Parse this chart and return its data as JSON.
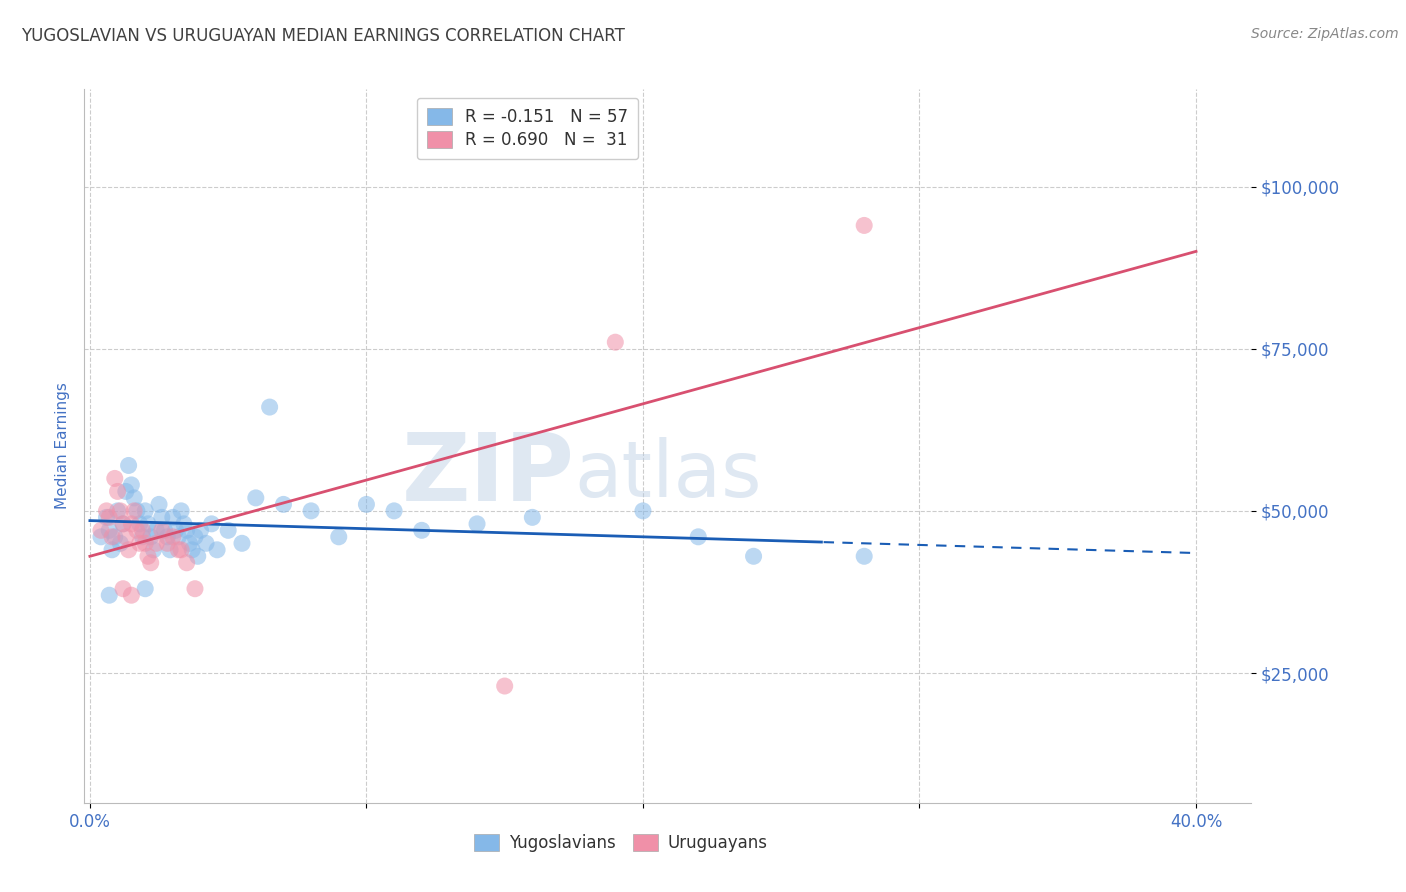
{
  "title": "YUGOSLAVIAN VS URUGUAYAN MEDIAN EARNINGS CORRELATION CHART",
  "source": "Source: ZipAtlas.com",
  "ylabel": "Median Earnings",
  "watermark_zip": "ZIP",
  "watermark_atlas": "atlas",
  "xlim": [
    -0.002,
    0.42
  ],
  "ylim": [
    5000,
    115000
  ],
  "y_ticks": [
    25000,
    50000,
    75000,
    100000
  ],
  "y_tick_labels": [
    "$25,000",
    "$50,000",
    "$75,000",
    "$100,000"
  ],
  "x_tick_positions": [
    0.0,
    0.1,
    0.2,
    0.3,
    0.4
  ],
  "x_tick_labels": [
    "0.0%",
    "",
    "",
    "",
    "40.0%"
  ],
  "blue_scatter": [
    [
      0.004,
      46000
    ],
    [
      0.006,
      49000
    ],
    [
      0.007,
      47000
    ],
    [
      0.008,
      44000
    ],
    [
      0.009,
      46000
    ],
    [
      0.01,
      50000
    ],
    [
      0.011,
      45000
    ],
    [
      0.012,
      48000
    ],
    [
      0.013,
      53000
    ],
    [
      0.014,
      57000
    ],
    [
      0.015,
      54000
    ],
    [
      0.016,
      52000
    ],
    [
      0.017,
      50000
    ],
    [
      0.018,
      48000
    ],
    [
      0.019,
      46000
    ],
    [
      0.02,
      50000
    ],
    [
      0.021,
      48000
    ],
    [
      0.022,
      46000
    ],
    [
      0.023,
      44000
    ],
    [
      0.024,
      47000
    ],
    [
      0.025,
      51000
    ],
    [
      0.026,
      49000
    ],
    [
      0.027,
      47000
    ],
    [
      0.028,
      46000
    ],
    [
      0.029,
      44000
    ],
    [
      0.03,
      49000
    ],
    [
      0.031,
      47000
    ],
    [
      0.032,
      46000
    ],
    [
      0.033,
      50000
    ],
    [
      0.034,
      48000
    ],
    [
      0.035,
      47000
    ],
    [
      0.036,
      45000
    ],
    [
      0.037,
      44000
    ],
    [
      0.038,
      46000
    ],
    [
      0.039,
      43000
    ],
    [
      0.04,
      47000
    ],
    [
      0.042,
      45000
    ],
    [
      0.044,
      48000
    ],
    [
      0.046,
      44000
    ],
    [
      0.05,
      47000
    ],
    [
      0.055,
      45000
    ],
    [
      0.06,
      52000
    ],
    [
      0.065,
      66000
    ],
    [
      0.07,
      51000
    ],
    [
      0.08,
      50000
    ],
    [
      0.09,
      46000
    ],
    [
      0.1,
      51000
    ],
    [
      0.11,
      50000
    ],
    [
      0.12,
      47000
    ],
    [
      0.14,
      48000
    ],
    [
      0.16,
      49000
    ],
    [
      0.2,
      50000
    ],
    [
      0.22,
      46000
    ],
    [
      0.24,
      43000
    ],
    [
      0.007,
      37000
    ],
    [
      0.02,
      38000
    ],
    [
      0.28,
      43000
    ]
  ],
  "pink_scatter": [
    [
      0.004,
      47000
    ],
    [
      0.006,
      50000
    ],
    [
      0.007,
      49000
    ],
    [
      0.008,
      46000
    ],
    [
      0.009,
      55000
    ],
    [
      0.01,
      53000
    ],
    [
      0.011,
      50000
    ],
    [
      0.012,
      48000
    ],
    [
      0.013,
      46000
    ],
    [
      0.014,
      44000
    ],
    [
      0.015,
      48000
    ],
    [
      0.016,
      50000
    ],
    [
      0.017,
      47000
    ],
    [
      0.018,
      45000
    ],
    [
      0.019,
      47000
    ],
    [
      0.02,
      45000
    ],
    [
      0.021,
      43000
    ],
    [
      0.022,
      42000
    ],
    [
      0.024,
      45000
    ],
    [
      0.026,
      47000
    ],
    [
      0.028,
      45000
    ],
    [
      0.03,
      46000
    ],
    [
      0.032,
      44000
    ],
    [
      0.033,
      44000
    ],
    [
      0.035,
      42000
    ],
    [
      0.038,
      38000
    ],
    [
      0.012,
      38000
    ],
    [
      0.015,
      37000
    ],
    [
      0.15,
      23000
    ],
    [
      0.19,
      76000
    ],
    [
      0.28,
      94000
    ]
  ],
  "blue_line": {
    "x0": 0.0,
    "y0": 48500,
    "x1": 0.4,
    "y1": 43500
  },
  "blue_line_solid_end": 0.265,
  "pink_line": {
    "x0": 0.0,
    "y0": 43000,
    "x1": 0.4,
    "y1": 90000
  },
  "scatter_size": 150,
  "scatter_alpha": 0.55,
  "blue_color": "#85b8e8",
  "pink_color": "#f090a8",
  "blue_line_color": "#1a5db5",
  "pink_line_color": "#d85070",
  "background_color": "#ffffff",
  "grid_color": "#cccccc",
  "title_color": "#404040",
  "axis_label_color": "#4472c4",
  "source_color": "#888888",
  "legend_top_label1": "R = -0.151   N = 57",
  "legend_top_label2": "R = 0.690   N =  31",
  "legend_bot_label1": "Yugoslavians",
  "legend_bot_label2": "Uruguayans"
}
